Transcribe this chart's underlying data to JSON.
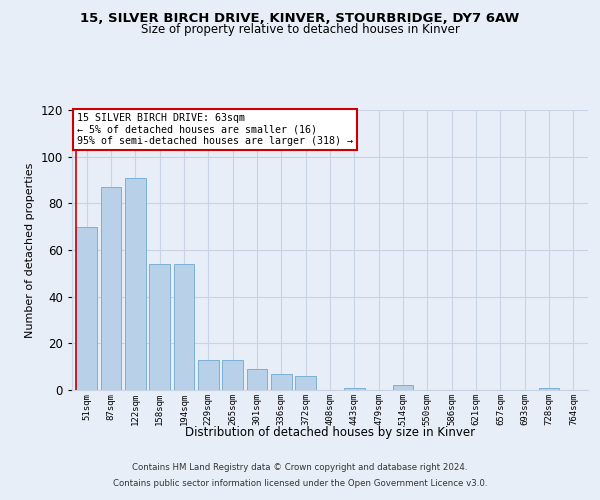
{
  "title1": "15, SILVER BIRCH DRIVE, KINVER, STOURBRIDGE, DY7 6AW",
  "title2": "Size of property relative to detached houses in Kinver",
  "xlabel": "Distribution of detached houses by size in Kinver",
  "ylabel": "Number of detached properties",
  "categories": [
    "51sqm",
    "87sqm",
    "122sqm",
    "158sqm",
    "194sqm",
    "229sqm",
    "265sqm",
    "301sqm",
    "336sqm",
    "372sqm",
    "408sqm",
    "443sqm",
    "479sqm",
    "514sqm",
    "550sqm",
    "586sqm",
    "621sqm",
    "657sqm",
    "693sqm",
    "728sqm",
    "764sqm"
  ],
  "values": [
    70,
    87,
    91,
    54,
    54,
    13,
    13,
    9,
    7,
    6,
    0,
    1,
    0,
    2,
    0,
    0,
    0,
    0,
    0,
    1,
    0
  ],
  "bar_color": "#b8d0e8",
  "bar_edge_color": "#7aafd4",
  "background_color": "#e8eef8",
  "grid_color": "#c8d4e4",
  "annotation_box_color": "#ffffff",
  "annotation_box_edge": "#cc0000",
  "ylim": [
    0,
    120
  ],
  "yticks": [
    0,
    20,
    40,
    60,
    80,
    100,
    120
  ],
  "annotation_line1": "15 SILVER BIRCH DRIVE: 63sqm",
  "annotation_line2": "← 5% of detached houses are smaller (16)",
  "annotation_line3": "95% of semi-detached houses are larger (318) →",
  "footer1": "Contains HM Land Registry data © Crown copyright and database right 2024.",
  "footer2": "Contains public sector information licensed under the Open Government Licence v3.0."
}
